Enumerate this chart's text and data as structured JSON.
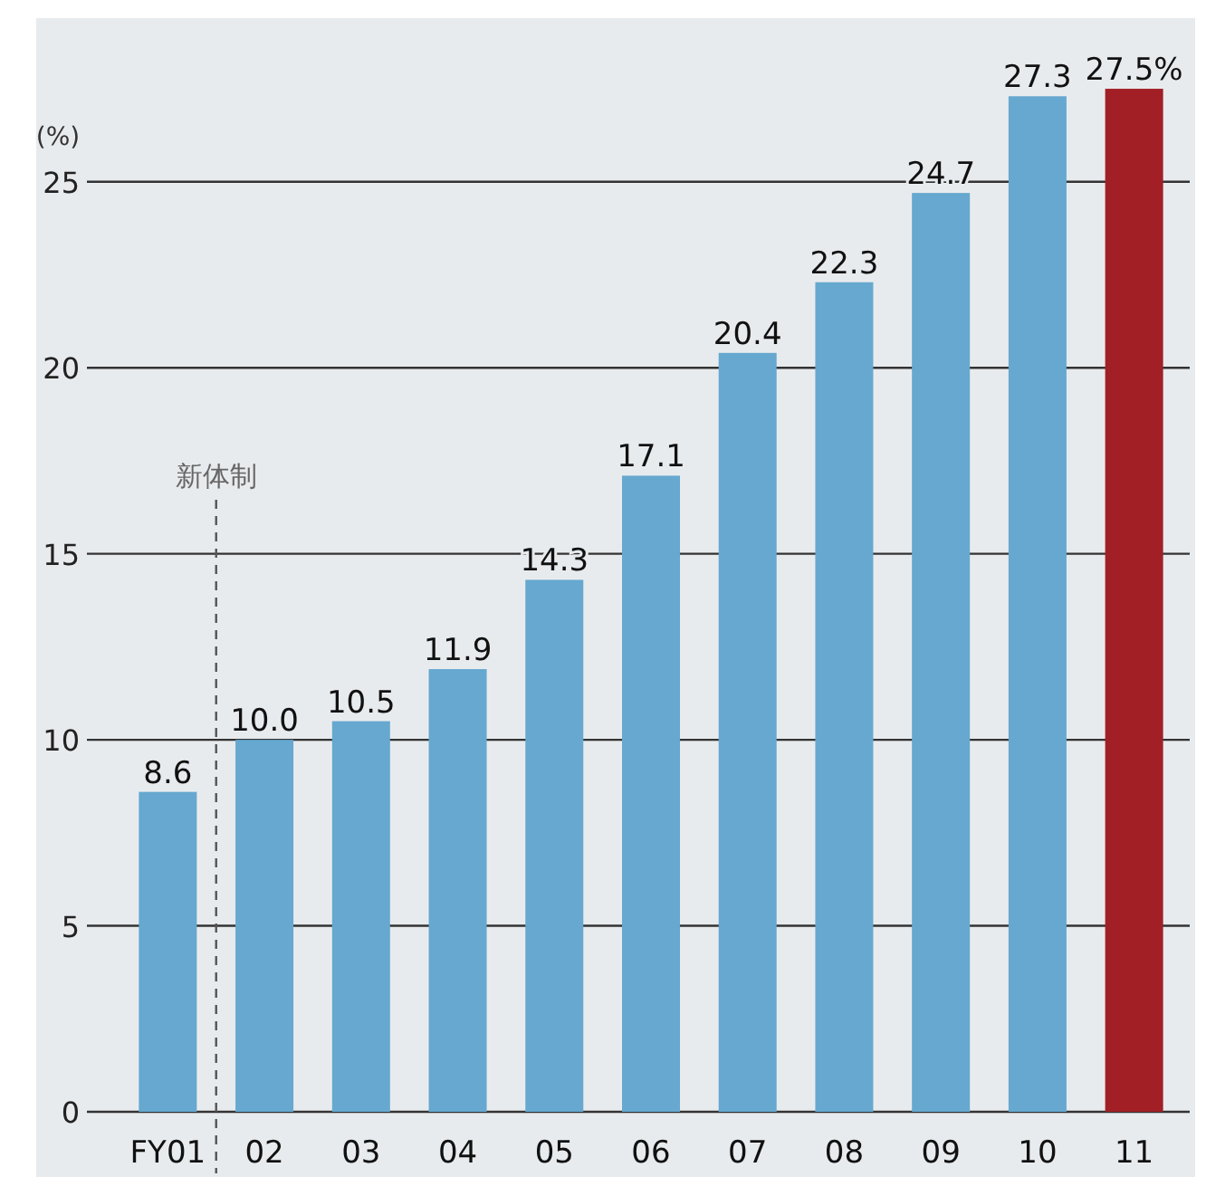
{
  "chart_data": {
    "type": "bar",
    "ylabel": "(%)",
    "categories": [
      "FY01",
      "02",
      "03",
      "04",
      "05",
      "06",
      "07",
      "08",
      "09",
      "10",
      "11"
    ],
    "values": [
      8.6,
      10.0,
      10.5,
      11.9,
      14.3,
      17.1,
      20.4,
      22.3,
      24.7,
      27.3,
      27.5
    ],
    "colors": [
      "#66a8cf",
      "#66a8cf",
      "#66a8cf",
      "#66a8cf",
      "#66a8cf",
      "#66a8cf",
      "#66a8cf",
      "#66a8cf",
      "#66a8cf",
      "#66a8cf",
      "#a11f25"
    ],
    "value_labels": [
      "8.6",
      "10.0",
      "10.5",
      "11.9",
      "14.3",
      "17.1",
      "20.4",
      "22.3",
      "24.7",
      "27.3",
      "27.5%"
    ],
    "ylim": [
      0,
      29.4
    ],
    "yticks": [
      0,
      5,
      10,
      15,
      20,
      25
    ],
    "grid": "y",
    "ref_lines": [
      {
        "axis": "x",
        "value": "02",
        "label": "新体制",
        "line_style": "dashed",
        "color": "#555555"
      }
    ]
  }
}
